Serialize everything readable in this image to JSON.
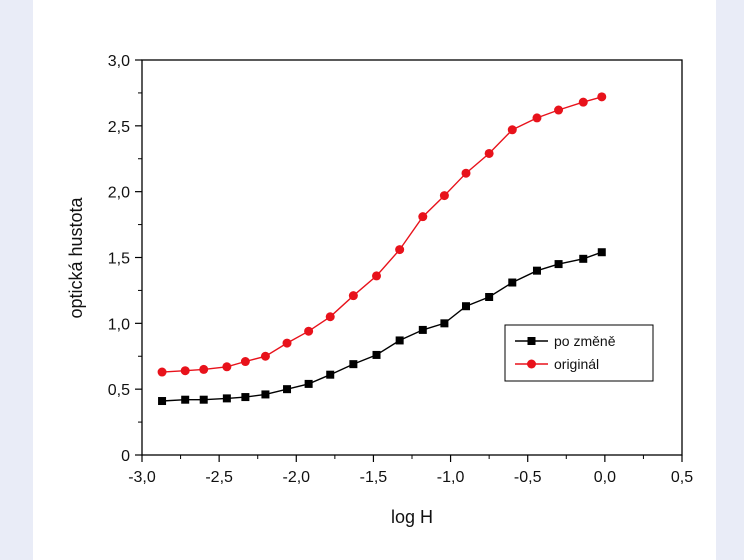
{
  "chart_data": {
    "type": "line",
    "xlabel": "log H",
    "ylabel": "optická hustota",
    "xlim": [
      -3.0,
      0.5
    ],
    "ylim": [
      0,
      3.0
    ],
    "x_ticks": [
      "-3,0",
      "-2,5",
      "-2,0",
      "-1,5",
      "-1,0",
      "-0,5",
      "0,0",
      "0,5"
    ],
    "y_ticks": [
      "0",
      "0,5",
      "1,0",
      "1,5",
      "2,0",
      "2,5",
      "3,0"
    ],
    "grid": false,
    "legend_position": "center-right",
    "x": [
      -2.87,
      -2.72,
      -2.6,
      -2.45,
      -2.33,
      -2.2,
      -2.06,
      -1.92,
      -1.78,
      -1.63,
      -1.48,
      -1.33,
      -1.18,
      -1.04,
      -0.9,
      -0.75,
      -0.6,
      -0.44,
      -0.3,
      -0.14,
      -0.02
    ],
    "series": [
      {
        "name": "po změně",
        "color": "#000000",
        "marker": "square",
        "values": [
          0.41,
          0.42,
          0.42,
          0.43,
          0.44,
          0.46,
          0.5,
          0.54,
          0.61,
          0.69,
          0.76,
          0.87,
          0.95,
          1.0,
          1.13,
          1.2,
          1.31,
          1.4,
          1.45,
          1.49,
          1.54
        ]
      },
      {
        "name": "originál",
        "color": "#e8121b",
        "marker": "circle",
        "values": [
          0.63,
          0.64,
          0.65,
          0.67,
          0.71,
          0.75,
          0.85,
          0.94,
          1.05,
          1.21,
          1.36,
          1.56,
          1.81,
          1.97,
          2.14,
          2.29,
          2.47,
          2.56,
          2.62,
          2.68,
          2.72
        ]
      }
    ]
  }
}
